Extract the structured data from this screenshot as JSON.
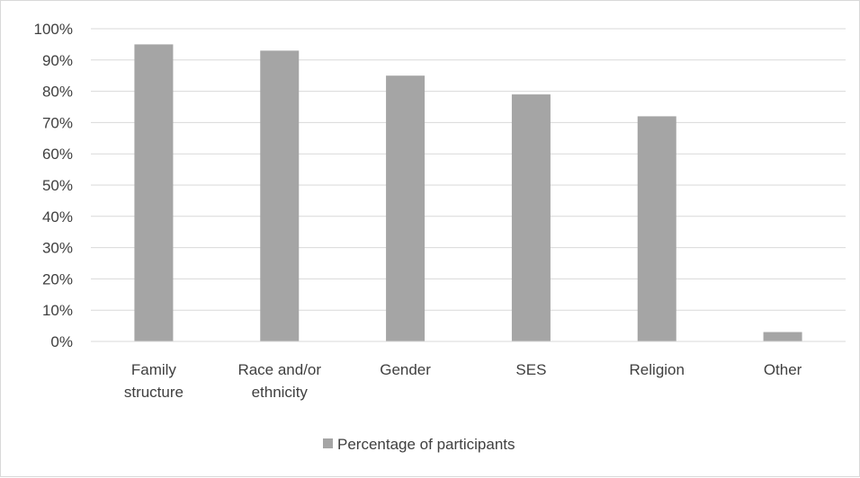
{
  "chart_data": {
    "type": "bar",
    "categories": [
      [
        "Family",
        "structure"
      ],
      [
        "Race and/or",
        "ethnicity"
      ],
      [
        "Gender"
      ],
      [
        "SES"
      ],
      [
        "Religion"
      ],
      [
        "Other"
      ]
    ],
    "series": [
      {
        "name": "Percentage of participants",
        "values": [
          95,
          93,
          85,
          79,
          72,
          3
        ]
      }
    ],
    "y_ticks": [
      "0%",
      "10%",
      "20%",
      "30%",
      "40%",
      "50%",
      "60%",
      "70%",
      "80%",
      "90%",
      "100%"
    ],
    "ylim": [
      0,
      100
    ],
    "grid": true,
    "legend_position": "bottom",
    "colors": {
      "bar": "#a5a5a5",
      "grid": "#d9d9d9",
      "text": "#404040",
      "legend_swatch": "#a5a5a5"
    }
  }
}
